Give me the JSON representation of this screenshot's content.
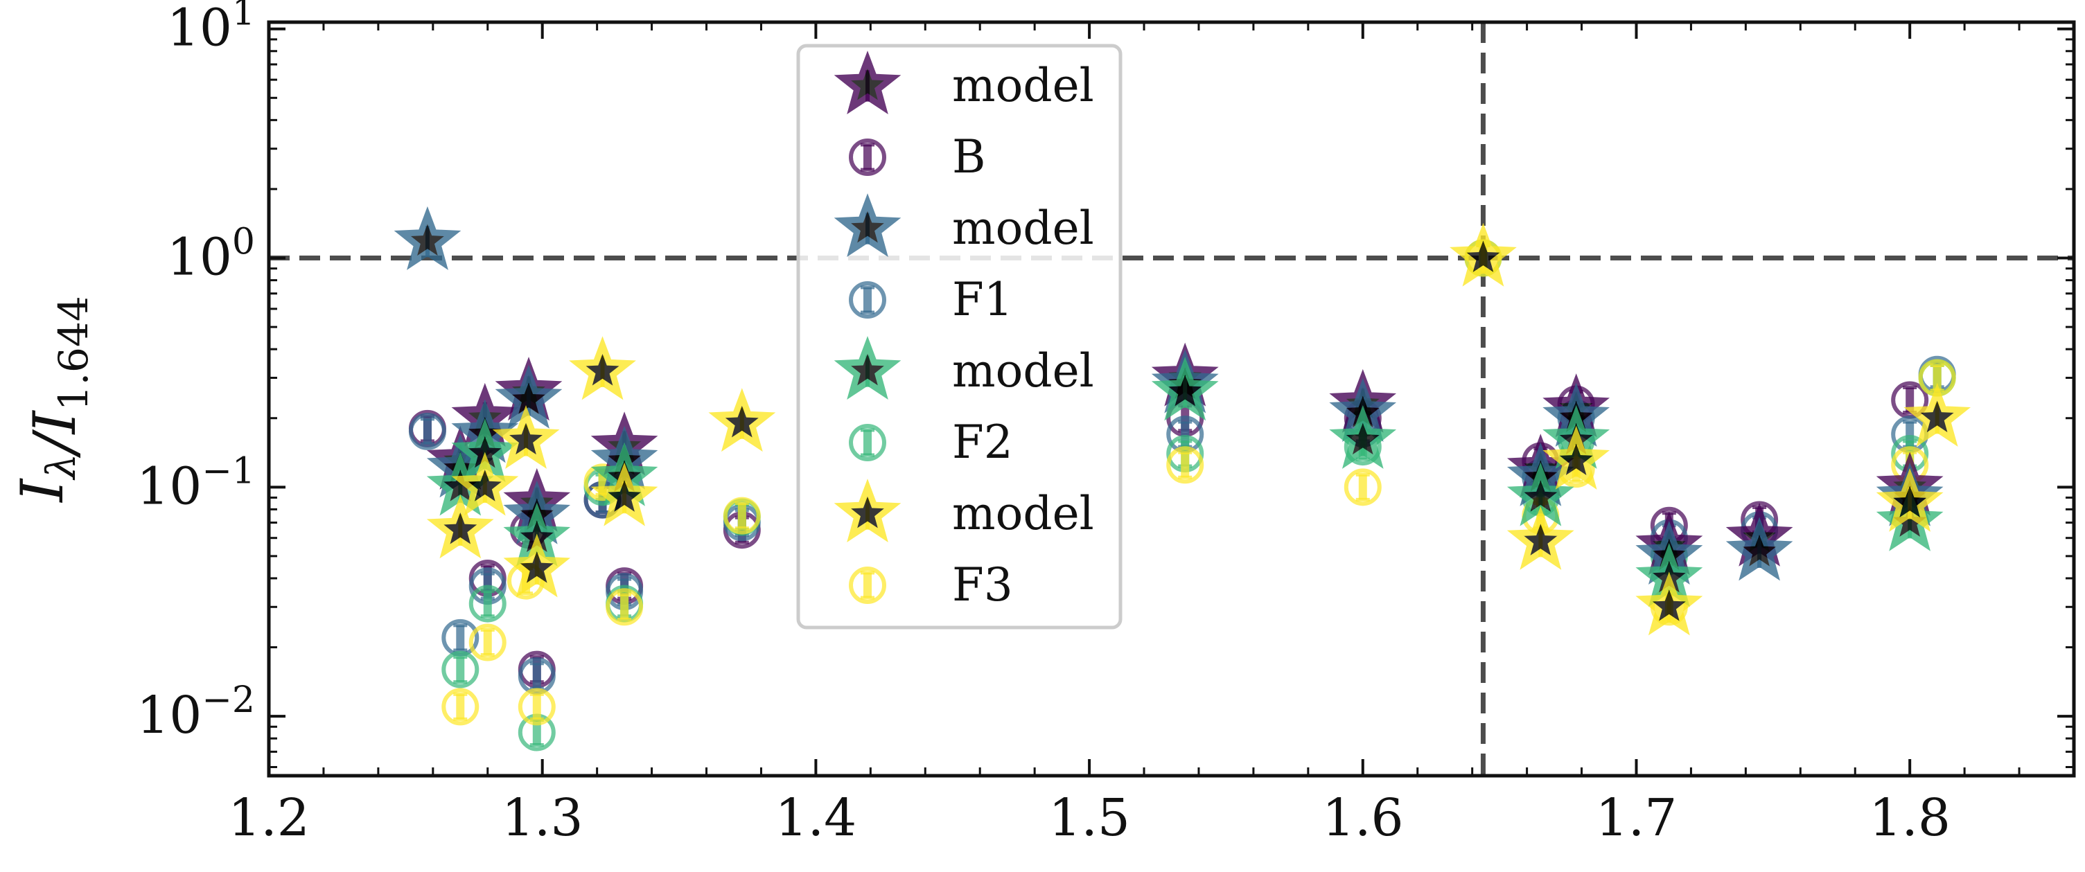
{
  "chart_data": {
    "type": "scatter",
    "title": "",
    "xlabel": "",
    "ylabel": "I_λ/I_1.644",
    "xlim": [
      1.2,
      1.86
    ],
    "ylim": [
      0.0055,
      10.7
    ],
    "yscale": "log",
    "x_ticks": [
      1.2,
      1.3,
      1.4,
      1.5,
      1.6,
      1.7,
      1.8
    ],
    "x_tick_labels": [
      "1.2",
      "1.3",
      "1.4",
      "1.5",
      "1.6",
      "1.7",
      "1.8"
    ],
    "y_ticks": [
      {
        "value": 0.01,
        "base": "10",
        "exp": "−2"
      },
      {
        "value": 0.1,
        "base": "10",
        "exp": "−1"
      },
      {
        "value": 1,
        "base": "10",
        "exp": "0"
      },
      {
        "value": 10,
        "base": "10",
        "exp": "1"
      }
    ],
    "reference_lines": {
      "y": 1.0,
      "x": 1.644,
      "color": "#4d4d4d",
      "style": "dashed"
    },
    "grid": false,
    "legend_position": "upper-center",
    "legend": [
      {
        "label": "model",
        "marker": "star",
        "color": "#440154"
      },
      {
        "label": "B",
        "marker": "circle",
        "color": "#440154"
      },
      {
        "label": "model",
        "marker": "star",
        "color": "#31688e"
      },
      {
        "label": "F1",
        "marker": "circle",
        "color": "#31688e"
      },
      {
        "label": "model",
        "marker": "star",
        "color": "#35b779"
      },
      {
        "label": "F2",
        "marker": "circle",
        "color": "#35b779"
      },
      {
        "label": "model",
        "marker": "star",
        "color": "#fde725"
      },
      {
        "label": "F3",
        "marker": "circle",
        "color": "#fde725"
      }
    ],
    "series": [
      {
        "name": "model",
        "marker": "star",
        "color": "#440154",
        "x": [
          1.27,
          1.279,
          1.295,
          1.298,
          1.33,
          1.535,
          1.6,
          1.665,
          1.678,
          1.712,
          1.745,
          1.8
        ],
        "y": [
          0.13,
          0.2,
          0.26,
          0.085,
          0.15,
          0.3,
          0.23,
          0.12,
          0.22,
          0.055,
          0.06,
          0.1
        ]
      },
      {
        "name": "B",
        "marker": "circle",
        "color": "#440154",
        "x": [
          1.258,
          1.28,
          1.295,
          1.298,
          1.322,
          1.33,
          1.373,
          1.535,
          1.6,
          1.665,
          1.678,
          1.712,
          1.745,
          1.8
        ],
        "y": [
          0.18,
          0.04,
          0.065,
          0.016,
          0.088,
          0.037,
          0.065,
          0.2,
          0.2,
          0.13,
          0.23,
          0.068,
          0.072,
          0.24
        ]
      },
      {
        "name": "model",
        "marker": "star",
        "color": "#31688e",
        "x": [
          1.258,
          1.27,
          1.279,
          1.295,
          1.298,
          1.33,
          1.535,
          1.6,
          1.665,
          1.678,
          1.712,
          1.745,
          1.8
        ],
        "y": [
          1.18,
          0.12,
          0.17,
          0.24,
          0.075,
          0.13,
          0.28,
          0.21,
          0.11,
          0.2,
          0.05,
          0.052,
          0.09
        ]
      },
      {
        "name": "F1",
        "marker": "circle",
        "color": "#31688e",
        "x": [
          1.258,
          1.27,
          1.28,
          1.298,
          1.322,
          1.33,
          1.373,
          1.535,
          1.6,
          1.665,
          1.678,
          1.712,
          1.745,
          1.8,
          1.81
        ],
        "y": [
          0.175,
          0.022,
          0.037,
          0.015,
          0.088,
          0.035,
          0.07,
          0.17,
          0.18,
          0.11,
          0.2,
          0.06,
          0.065,
          0.17,
          0.31
        ]
      },
      {
        "name": "model",
        "marker": "star",
        "color": "#35b779",
        "x": [
          1.27,
          1.279,
          1.298,
          1.33,
          1.535,
          1.6,
          1.665,
          1.678,
          1.712,
          1.8
        ],
        "y": [
          0.1,
          0.14,
          0.06,
          0.11,
          0.26,
          0.16,
          0.09,
          0.16,
          0.04,
          0.07
        ]
      },
      {
        "name": "F2",
        "marker": "circle",
        "color": "#35b779",
        "x": [
          1.27,
          1.28,
          1.298,
          1.322,
          1.33,
          1.373,
          1.535,
          1.6,
          1.644,
          1.665,
          1.678,
          1.712,
          1.8,
          1.81
        ],
        "y": [
          0.016,
          0.031,
          0.0085,
          0.1,
          0.031,
          0.074,
          0.14,
          0.15,
          1.0,
          0.09,
          0.16,
          0.05,
          0.14,
          0.3
        ]
      },
      {
        "name": "model",
        "marker": "star",
        "color": "#fde725",
        "x": [
          1.27,
          1.279,
          1.294,
          1.298,
          1.322,
          1.33,
          1.373,
          1.644,
          1.665,
          1.678,
          1.712,
          1.8,
          1.81
        ],
        "y": [
          0.065,
          0.1,
          0.16,
          0.044,
          0.32,
          0.09,
          0.19,
          1.0,
          0.058,
          0.13,
          0.03,
          0.085,
          0.2
        ]
      },
      {
        "name": "F3",
        "marker": "circle",
        "color": "#fde725",
        "x": [
          1.27,
          1.28,
          1.294,
          1.298,
          1.322,
          1.33,
          1.373,
          1.535,
          1.6,
          1.644,
          1.665,
          1.678,
          1.712,
          1.8,
          1.81
        ],
        "y": [
          0.011,
          0.021,
          0.039,
          0.011,
          0.105,
          0.03,
          0.075,
          0.125,
          0.1,
          1.0,
          0.075,
          0.12,
          0.03,
          0.125,
          0.3
        ]
      }
    ]
  }
}
